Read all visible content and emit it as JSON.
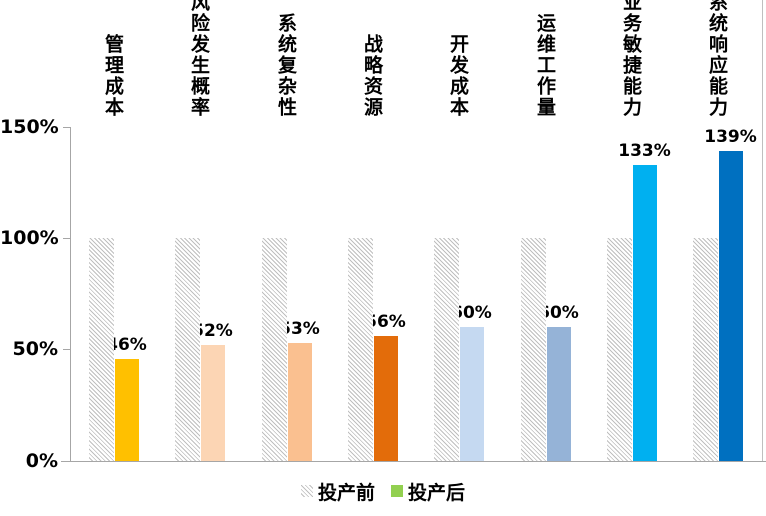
{
  "chart_data": {
    "type": "bar",
    "title": "",
    "categories": [
      "管理成本",
      "风险发生概率",
      "系统复杂性",
      "战略资源",
      "开发成本",
      "运维工作量",
      "业务敏捷能力",
      "系统响应能力"
    ],
    "series": [
      {
        "name": "投产前",
        "values": [
          100,
          100,
          100,
          100,
          100,
          100,
          100,
          100
        ],
        "style": "hatched-gray"
      },
      {
        "name": "投产后",
        "values": [
          46,
          52,
          53,
          56,
          60,
          60,
          133,
          139
        ],
        "colors": [
          "#FFC000",
          "#FCD5B4",
          "#FAC090",
          "#E36C0A",
          "#C5D9F1",
          "#95B3D7",
          "#00B0F0",
          "#0070C0"
        ]
      }
    ],
    "value_labels": [
      "46%",
      "52%",
      "53%",
      "56%",
      "60%",
      "60%",
      "133%",
      "139%"
    ],
    "xlabel": "",
    "ylabel": "",
    "ytick_labels": [
      "0%",
      "50%",
      "100%",
      "150%"
    ],
    "ylim": [
      0,
      150
    ],
    "grid": false,
    "legend": {
      "position": "bottom",
      "entries": [
        {
          "label": "投产前",
          "swatch": "hatched-gray"
        },
        {
          "label": "投产后",
          "swatch_color": "#92D050"
        }
      ]
    }
  },
  "colors": {
    "axis": "#a6a6a6",
    "hatch_line": "#bfbfbf",
    "text": "#000000",
    "legend_after_swatch": "#92D050"
  }
}
